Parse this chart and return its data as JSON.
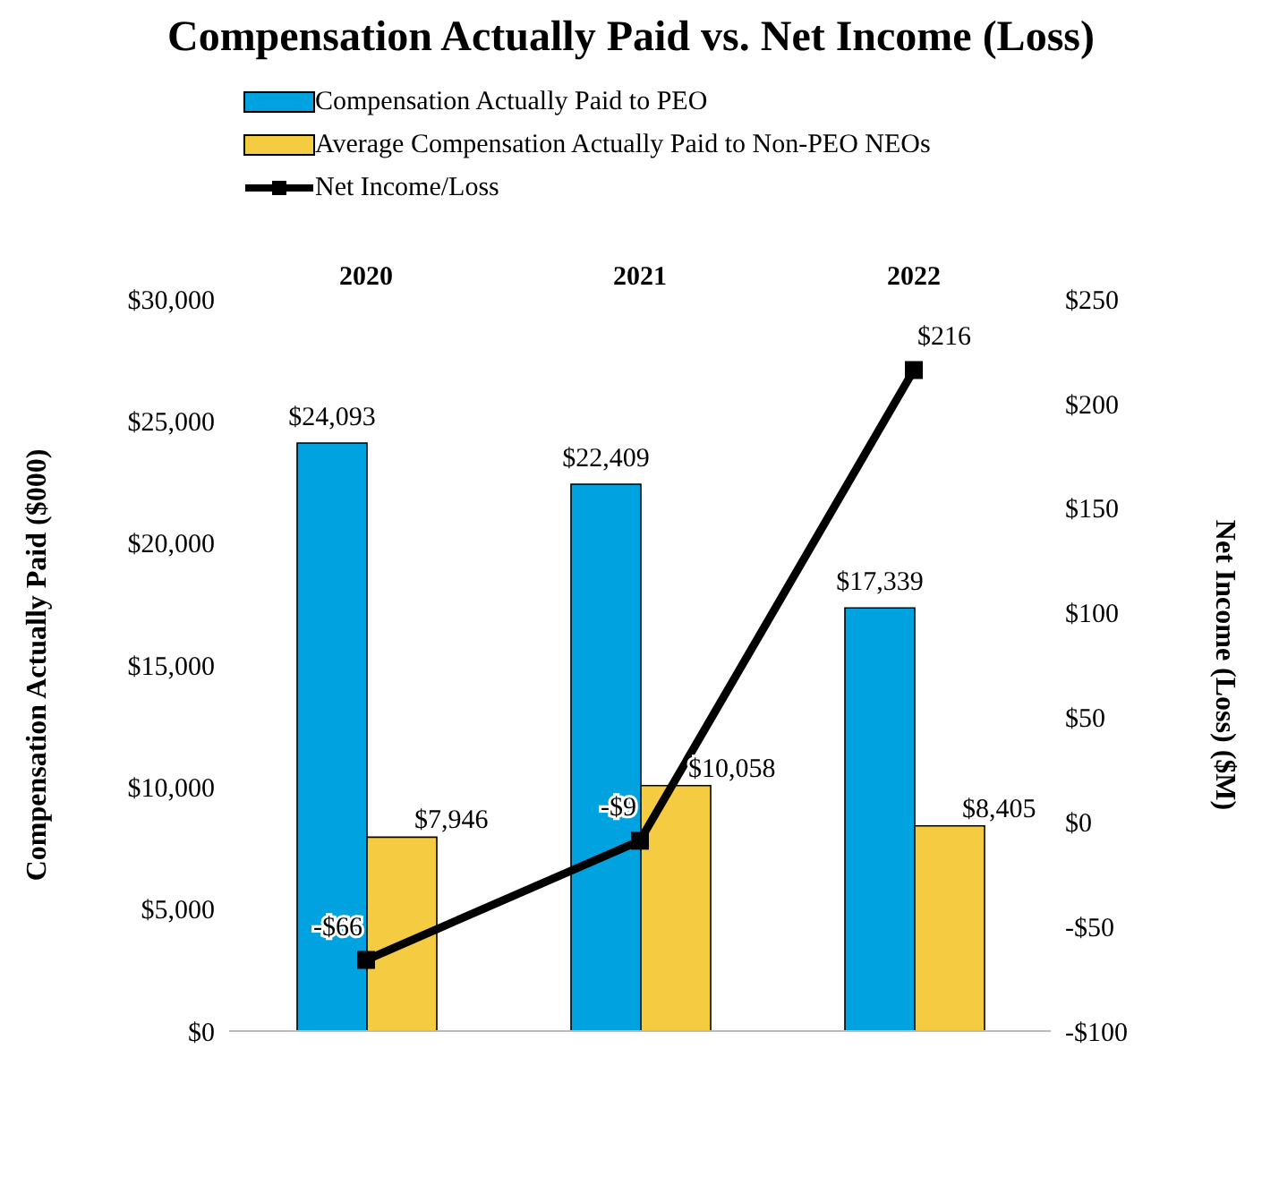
{
  "chart_data": {
    "type": "bar",
    "title": "Compensation Actually Paid vs. Net Income (Loss)",
    "ylabel": "Compensation Actually Paid ($000)",
    "y2label": "Net Income (Loss) ($M)",
    "categories": [
      "2020",
      "2021",
      "2022"
    ],
    "series": [
      {
        "name": "Compensation Actually Paid to PEO",
        "color": "#00a3e0",
        "values": [
          24093,
          22409,
          17339
        ],
        "value_labels": [
          "$24,093",
          "$22,409",
          "$17,339"
        ]
      },
      {
        "name": "Average Compensation Actually Paid to Non-PEO NEOs",
        "color": "#f5cb42",
        "values": [
          7946,
          10058,
          8405
        ],
        "value_labels": [
          "$7,946",
          "$10,058",
          "$8,405"
        ]
      },
      {
        "name": "Net Income/Loss",
        "type": "line",
        "axis": "y2",
        "color": "#000000",
        "marker": "square",
        "values": [
          -66,
          -9,
          216
        ],
        "value_labels": [
          "-$66",
          "-$9",
          "$216"
        ]
      }
    ],
    "ylim": [
      0,
      30000
    ],
    "yticks": [
      {
        "value": 0,
        "label": "$0"
      },
      {
        "value": 5000,
        "label": "$5,000"
      },
      {
        "value": 10000,
        "label": "$10,000"
      },
      {
        "value": 15000,
        "label": "$15,000"
      },
      {
        "value": 20000,
        "label": "$20,000"
      },
      {
        "value": 25000,
        "label": "$25,000"
      },
      {
        "value": 30000,
        "label": "$30,000"
      }
    ],
    "y2lim": [
      -100,
      250
    ],
    "y2ticks": [
      {
        "value": -100,
        "label": "-$100"
      },
      {
        "value": -50,
        "label": "-$50"
      },
      {
        "value": 0,
        "label": "$0"
      },
      {
        "value": 50,
        "label": "$50"
      },
      {
        "value": 100,
        "label": "$100"
      },
      {
        "value": 150,
        "label": "$150"
      },
      {
        "value": 200,
        "label": "$200"
      },
      {
        "value": 250,
        "label": "$250"
      }
    ],
    "legend": "top",
    "grid": false
  }
}
